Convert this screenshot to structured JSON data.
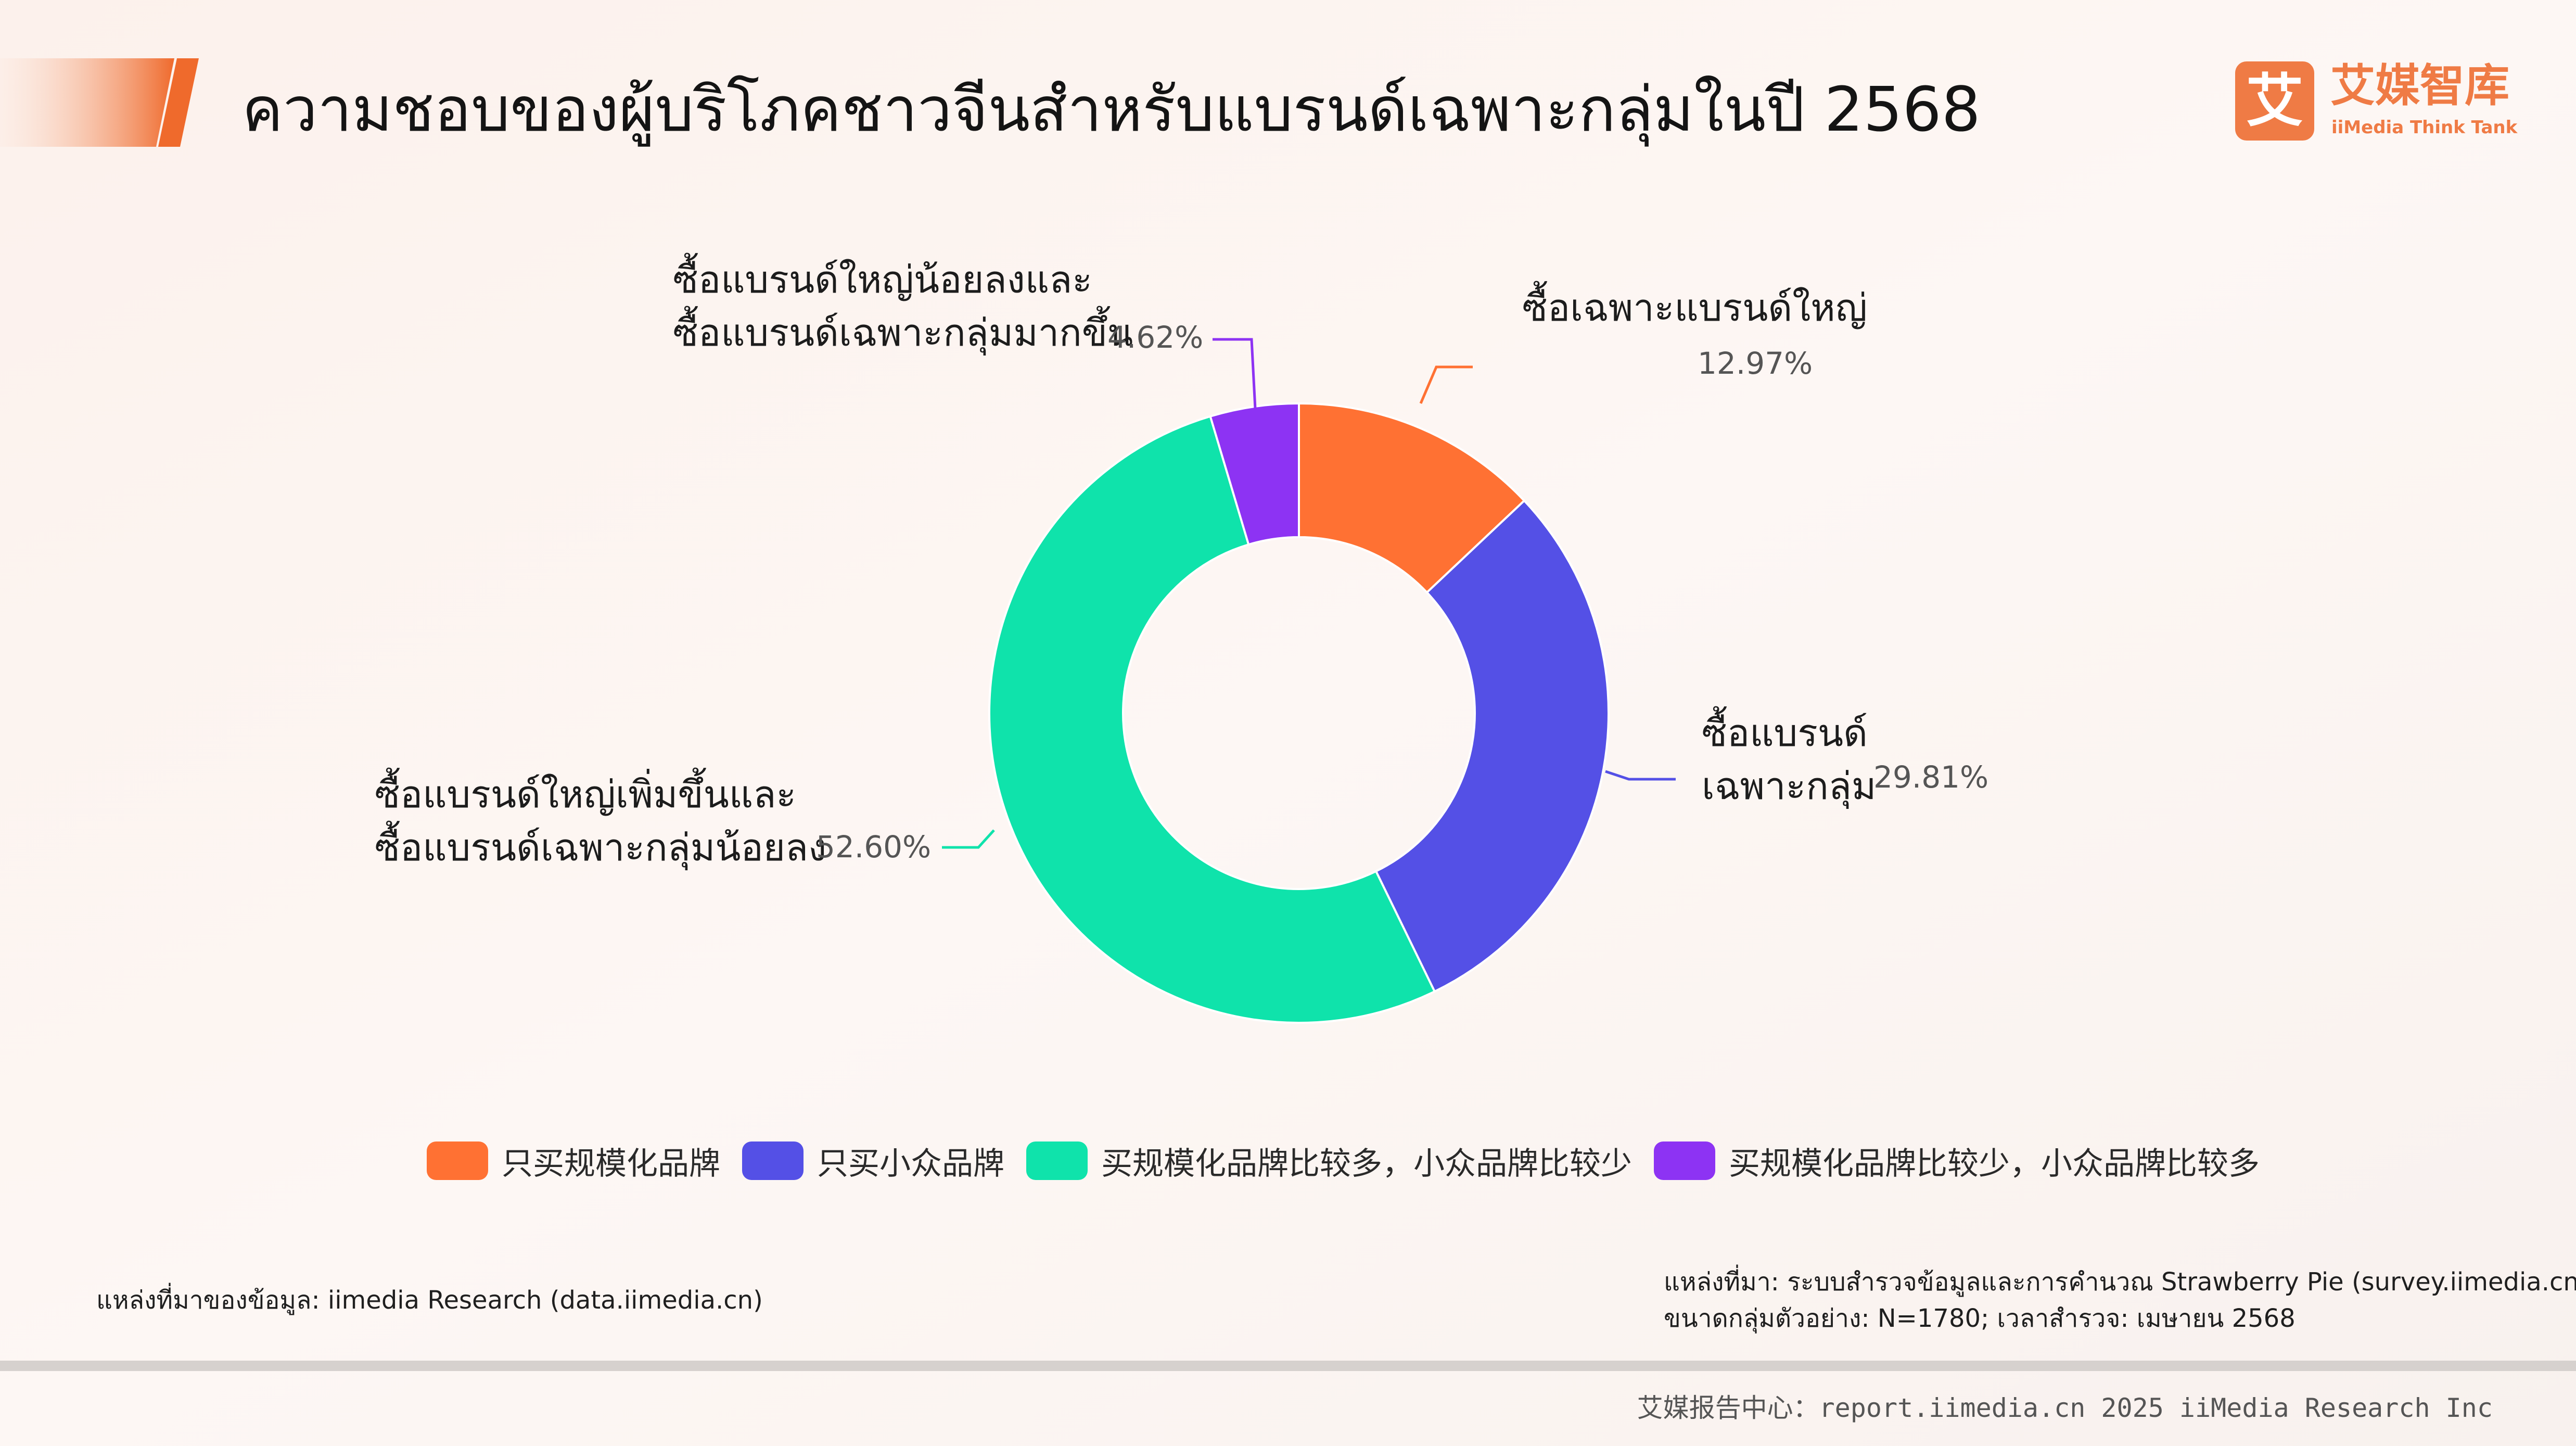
{
  "header": {
    "title": "ความชอบของผู้บริโภคชาวจีนสำหรับแบรนด์เฉพาะกลุ่มในปี 2568"
  },
  "logo": {
    "glyph": "艾",
    "chinese": "艾媒智库",
    "english": "iiMedia Think Tank"
  },
  "colors": {
    "accent": "#ef7b45",
    "orange": "#ff7133",
    "blue": "#5450e6",
    "green": "#0fe3ab",
    "purple": "#8d33f3"
  },
  "chart_data": {
    "type": "pie",
    "donut": true,
    "categories": [
      "只买规模化品牌",
      "只买小众品牌",
      "买规模化品牌比较多，小众品牌比较少",
      "买规模化品牌比较少，小众品牌比较多"
    ],
    "values": [
      12.97,
      29.81,
      52.6,
      4.62
    ],
    "value_labels": [
      "12.97%",
      "29.81%",
      "52.60%",
      "4.62%"
    ],
    "slice_labels": [
      [
        "ซื้อเฉพาะแบรนด์ใหญ่"
      ],
      [
        "ซื้อแบรนด์",
        "เฉพาะกลุ่ม"
      ],
      [
        "ซื้อแบรนด์ใหญ่เพิ่มขึ้นและ",
        "ซื้อแบรนด์เฉพาะกลุ่มน้อยลง"
      ],
      [
        "ซื้อแบรนด์ใหญ่น้อยลงและ",
        "ซื้อแบรนด์เฉพาะกลุ่มมากขึ้น"
      ]
    ],
    "colors": [
      "#ff7133",
      "#5450e6",
      "#0fe3ab",
      "#8d33f3"
    ],
    "legend_position": "bottom"
  },
  "notes": {
    "source_left": "แหล่งที่มาของข้อมูล: iimedia Research (data.iimedia.cn)",
    "source_right_1": "แหล่งที่มา: ระบบสำรวจข้อมูลและการคำนวณ Strawberry Pie (survey.iimedia.cn)",
    "source_right_2": "ขนาดกลุ่มตัวอย่าง: N=1780; เวลาสำรวจ: เมษายน 2568"
  },
  "footer": {
    "text": "艾媒报告中心：report.iimedia.cn   2025 iiMedia Research Inc"
  }
}
